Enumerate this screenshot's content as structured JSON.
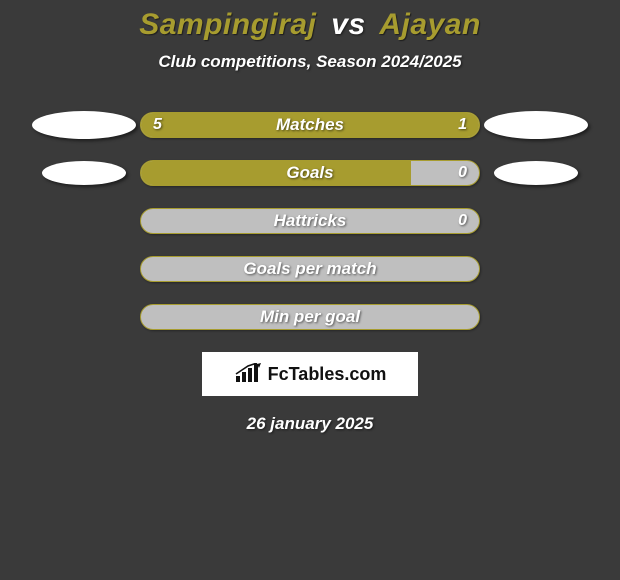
{
  "background_color": "#3a3a3a",
  "title": {
    "player1": "Sampingiraj",
    "vs": "vs",
    "player2": "Ajayan",
    "player1_color": "#a79c2f",
    "player2_color": "#a79c2f"
  },
  "subtitle": "Club competitions, Season 2024/2025",
  "bars": {
    "border_color": "#a79c2f",
    "left_fill_color": "#a79c2f",
    "right_fill_color": "#a79c2f",
    "empty_fill_color": "#bfbfbf",
    "label_color": "#ffffff"
  },
  "rows": [
    {
      "label": "Matches",
      "left_value": "5",
      "right_value": "1",
      "left_pct": 78,
      "right_pct": 22,
      "show_left_shape": true,
      "show_right_shape": true,
      "shape_size": "big"
    },
    {
      "label": "Goals",
      "left_value": "",
      "right_value": "0",
      "left_pct": 80,
      "right_pct": 0,
      "show_left_shape": true,
      "show_right_shape": true,
      "shape_size": "small"
    },
    {
      "label": "Hattricks",
      "left_value": "",
      "right_value": "0",
      "left_pct": 0,
      "right_pct": 0,
      "show_left_shape": false,
      "show_right_shape": false
    },
    {
      "label": "Goals per match",
      "left_value": "",
      "right_value": "",
      "left_pct": 0,
      "right_pct": 0,
      "show_left_shape": false,
      "show_right_shape": false
    },
    {
      "label": "Min per goal",
      "left_value": "",
      "right_value": "",
      "left_pct": 0,
      "right_pct": 0,
      "show_left_shape": false,
      "show_right_shape": false
    }
  ],
  "logo": {
    "text": "FcTables.com",
    "icon_color": "#111111",
    "box_bg": "#ffffff"
  },
  "date": "26 january 2025"
}
